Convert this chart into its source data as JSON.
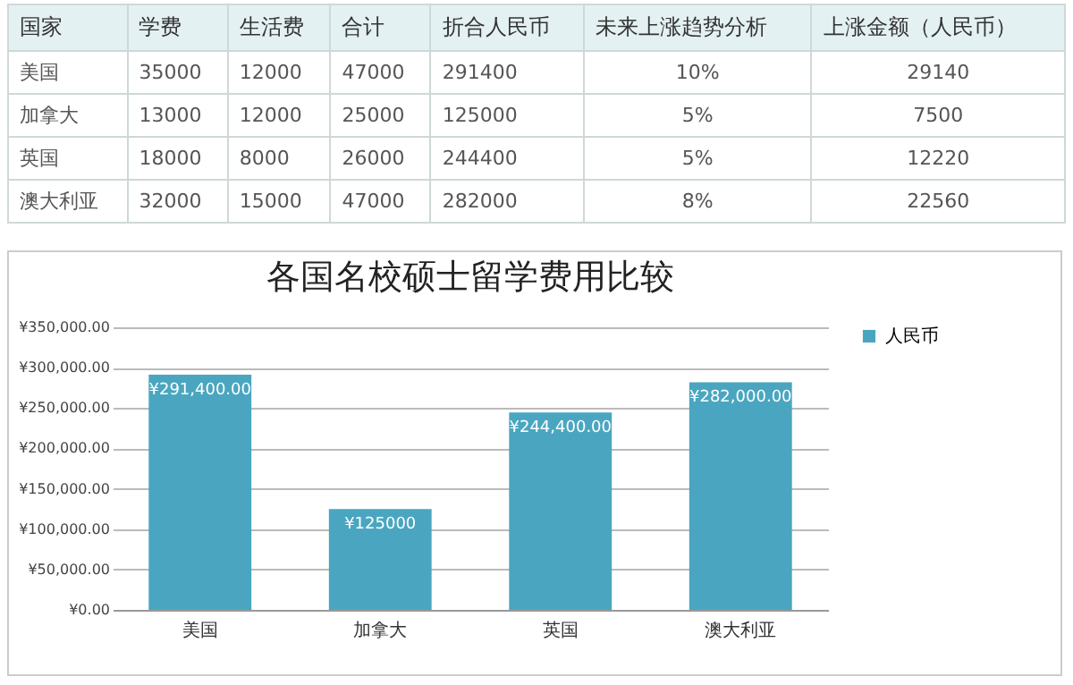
{
  "chart_data": [
    {
      "type": "other",
      "annotations": [
        "国家",
        "学费",
        "生活费",
        "合计",
        "折合人民币",
        "未来上涨趋势分析",
        "上涨金额（人民币）",
        "美国",
        "35000",
        "12000",
        "47000",
        "291400",
        "10%",
        "29140",
        "加拿大",
        "13000",
        "12000",
        "25000",
        "125000",
        "5%",
        "7500",
        "英国",
        "18000",
        "8000",
        "26000",
        "244400",
        "5%",
        "12220",
        "澳大利亚",
        "32000",
        "15000",
        "47000",
        "282000",
        "8%",
        "22560"
      ]
    },
    {
      "type": "bar",
      "title": "各国名校硕士留学费用比较",
      "categories": [
        "美国",
        "加拿大",
        "英国",
        "澳大利亚"
      ],
      "series": [
        {
          "name": "人民币",
          "color": "#4aa6c0",
          "values": [
            291400,
            125000,
            244400,
            282000
          ],
          "value_labels": [
            "¥291,400.00",
            "¥125000",
            "¥244,400.00",
            "¥282,000.00"
          ]
        }
      ],
      "ylim": [
        0,
        350000
      ],
      "yticks": [
        {
          "value": 0,
          "label": "¥0.00"
        },
        {
          "value": 50000,
          "label": "¥50,000.00"
        },
        {
          "value": 100000,
          "label": "¥100,000.00"
        },
        {
          "value": 150000,
          "label": "¥150,000.00"
        },
        {
          "value": 200000,
          "label": "¥200,000.00"
        },
        {
          "value": 250000,
          "label": "¥250,000.00"
        },
        {
          "value": 300000,
          "label": "¥300,000.00"
        },
        {
          "value": 350000,
          "label": "¥350,000.00"
        }
      ],
      "grid": "y",
      "legend": "right"
    }
  ]
}
